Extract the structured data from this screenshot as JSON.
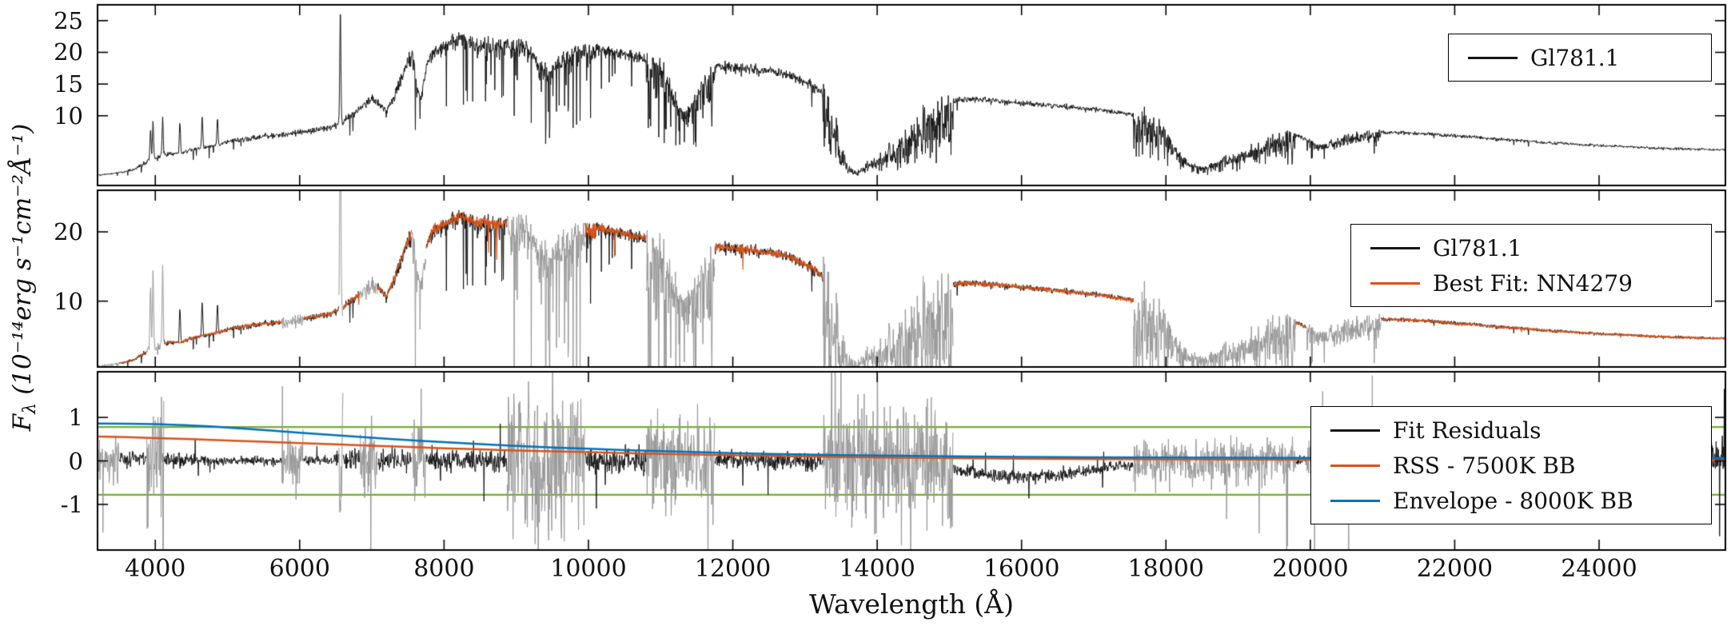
{
  "chart_data": {
    "type": "line",
    "title": "",
    "xlabel": "Wavelength (Å)",
    "ylabel": {
      "symbol": "F",
      "subscript": "λ",
      "units": " (10⁻¹⁴erg s⁻¹cm⁻²Å⁻¹)"
    },
    "ylabel_plain": "F_λ (10⁻¹⁴ erg s⁻¹ cm⁻² Å⁻¹)",
    "xlim": [
      3200,
      25750
    ],
    "x_ticks": [
      4000,
      6000,
      8000,
      10000,
      12000,
      14000,
      16000,
      18000,
      20000,
      22000,
      24000
    ],
    "colors": {
      "data": "#161616",
      "fit": "#d95319",
      "masked": "#989898",
      "rss": "#d95319",
      "envelope_bb": "#0072bd",
      "threshold": "#77ac30"
    },
    "panels": [
      {
        "id": "observed-spectrum",
        "ylim": [
          -1,
          27.5
        ],
        "y_ticks": [
          10,
          15,
          20,
          25
        ],
        "legend": [
          {
            "label": "Gl781.1",
            "color": "#161616"
          }
        ]
      },
      {
        "id": "best-fit-comparison",
        "ylim": [
          0.5,
          26
        ],
        "y_ticks": [
          10,
          20
        ],
        "legend": [
          {
            "label": "Gl781.1",
            "color": "#161616"
          },
          {
            "label": "Best Fit: NN4279",
            "color": "#d95319"
          }
        ]
      },
      {
        "id": "residuals",
        "ylim": [
          -2.05,
          2.05
        ],
        "y_ticks": [
          -1,
          0,
          1
        ],
        "threshold": 0.78,
        "legend": [
          {
            "label": "Fit Residuals",
            "color": "#161616"
          },
          {
            "label": "RSS - 7500K BB",
            "color": "#d95319"
          },
          {
            "label": "Envelope - 8000K BB",
            "color": "#0072bd"
          }
        ]
      }
    ],
    "spectrum_envelope": [
      [
        3200,
        0.7
      ],
      [
        3400,
        0.9
      ],
      [
        3600,
        1.3
      ],
      [
        3700,
        1.6
      ],
      [
        3800,
        2.3
      ],
      [
        3900,
        2.9
      ],
      [
        4000,
        3.4
      ],
      [
        4100,
        3.9
      ],
      [
        4200,
        4.2
      ],
      [
        4350,
        4.1
      ],
      [
        4500,
        4.8
      ],
      [
        4700,
        5.2
      ],
      [
        4900,
        5.7
      ],
      [
        5100,
        6.3
      ],
      [
        5300,
        6.6
      ],
      [
        5500,
        6.9
      ],
      [
        5700,
        7.1
      ],
      [
        5900,
        7.4
      ],
      [
        6100,
        7.8
      ],
      [
        6300,
        8.1
      ],
      [
        6450,
        8.5
      ],
      [
        6600,
        9.3
      ],
      [
        6750,
        10.6
      ],
      [
        6900,
        12.2
      ],
      [
        7000,
        13.2
      ],
      [
        7100,
        12.1
      ],
      [
        7200,
        10.9
      ],
      [
        7300,
        13.4
      ],
      [
        7400,
        16.3
      ],
      [
        7500,
        19.3
      ],
      [
        7560,
        20.6
      ],
      [
        7620,
        14.8
      ],
      [
        7680,
        13.2
      ],
      [
        7750,
        18.2
      ],
      [
        7850,
        20.9
      ],
      [
        7950,
        21.3
      ],
      [
        8050,
        21.9
      ],
      [
        8150,
        22.5
      ],
      [
        8250,
        22.9
      ],
      [
        8350,
        22.4
      ],
      [
        8450,
        21.9
      ],
      [
        8550,
        22.1
      ],
      [
        8650,
        21.6
      ],
      [
        8750,
        21.9
      ],
      [
        8850,
        22.0
      ],
      [
        8950,
        21.6
      ],
      [
        9050,
        21.7
      ],
      [
        9150,
        21.1
      ],
      [
        9250,
        20.2
      ],
      [
        9350,
        18.4
      ],
      [
        9450,
        17.6
      ],
      [
        9550,
        18.8
      ],
      [
        9700,
        20.4
      ],
      [
        9850,
        20.9
      ],
      [
        10000,
        21.1
      ],
      [
        10150,
        20.9
      ],
      [
        10300,
        20.6
      ],
      [
        10500,
        20.1
      ],
      [
        10700,
        19.7
      ],
      [
        10900,
        19.2
      ],
      [
        11050,
        17.8
      ],
      [
        11150,
        15.2
      ],
      [
        11250,
        11.8
      ],
      [
        11350,
        10.8
      ],
      [
        11450,
        12.6
      ],
      [
        11550,
        15.4
      ],
      [
        11650,
        17.2
      ],
      [
        11800,
        18.2
      ],
      [
        11950,
        18.1
      ],
      [
        12100,
        17.9
      ],
      [
        12300,
        17.7
      ],
      [
        12500,
        17.4
      ],
      [
        12700,
        17.0
      ],
      [
        12900,
        16.2
      ],
      [
        13100,
        15.2
      ],
      [
        13250,
        13.6
      ],
      [
        13400,
        9.5
      ],
      [
        13500,
        4.8
      ],
      [
        13600,
        2.0
      ],
      [
        13700,
        1.2
      ],
      [
        13800,
        1.6
      ],
      [
        13900,
        2.6
      ],
      [
        14000,
        3.4
      ],
      [
        14150,
        4.4
      ],
      [
        14300,
        5.6
      ],
      [
        14450,
        7.4
      ],
      [
        14600,
        9.2
      ],
      [
        14750,
        10.8
      ],
      [
        14900,
        12.0
      ],
      [
        15050,
        12.6
      ],
      [
        15250,
        12.8
      ],
      [
        15450,
        12.7
      ],
      [
        15700,
        12.5
      ],
      [
        16000,
        12.2
      ],
      [
        16300,
        11.9
      ],
      [
        16600,
        11.6
      ],
      [
        16900,
        11.3
      ],
      [
        17200,
        10.9
      ],
      [
        17500,
        10.4
      ],
      [
        17700,
        9.8
      ],
      [
        17900,
        8.6
      ],
      [
        18050,
        6.6
      ],
      [
        18200,
        4.2
      ],
      [
        18350,
        2.4
      ],
      [
        18500,
        1.9
      ],
      [
        18650,
        2.5
      ],
      [
        18800,
        3.2
      ],
      [
        18950,
        3.9
      ],
      [
        19100,
        4.4
      ],
      [
        19250,
        4.9
      ],
      [
        19400,
        5.6
      ],
      [
        19550,
        6.6
      ],
      [
        19700,
        7.2
      ],
      [
        19850,
        6.9
      ],
      [
        19950,
        6.3
      ],
      [
        20050,
        5.6
      ],
      [
        20150,
        5.3
      ],
      [
        20250,
        5.7
      ],
      [
        20400,
        6.4
      ],
      [
        20550,
        6.9
      ],
      [
        20700,
        7.2
      ],
      [
        20900,
        7.4
      ],
      [
        21100,
        7.5
      ],
      [
        21400,
        7.4
      ],
      [
        21700,
        7.2
      ],
      [
        22000,
        6.9
      ],
      [
        22300,
        6.7
      ],
      [
        22600,
        6.4
      ],
      [
        22900,
        6.2
      ],
      [
        23200,
        5.9
      ],
      [
        23500,
        5.7
      ],
      [
        23800,
        5.5
      ],
      [
        24100,
        5.3
      ],
      [
        24400,
        5.2
      ],
      [
        24700,
        5.0
      ],
      [
        25000,
        4.9
      ],
      [
        25300,
        4.8
      ],
      [
        25750,
        4.7
      ]
    ],
    "emission_lines": [
      [
        3934,
        5
      ],
      [
        3968,
        6
      ],
      [
        4102,
        6
      ],
      [
        4341,
        5
      ],
      [
        4650,
        5
      ],
      [
        4861,
        4
      ],
      [
        6563,
        18
      ]
    ],
    "rough_regions": [
      [
        3200,
        4200,
        0.14,
        0.12,
        0.02,
        0.5
      ],
      [
        4200,
        6500,
        0.07,
        0.05,
        0.01,
        0.3
      ],
      [
        6500,
        7500,
        0.09,
        0.05,
        0.02,
        0.35
      ],
      [
        7500,
        8500,
        0.11,
        0.035,
        0.05,
        0.4
      ],
      [
        8500,
        9300,
        0.13,
        0.035,
        0.06,
        0.45
      ],
      [
        9300,
        10100,
        0.2,
        0.035,
        0.07,
        0.5
      ],
      [
        10100,
        10800,
        0.07,
        0.03,
        0.02,
        0.25
      ],
      [
        10800,
        11750,
        0.35,
        0.05,
        0.1,
        0.5
      ],
      [
        11750,
        13250,
        0.07,
        0.035,
        0.02,
        0.3
      ],
      [
        13250,
        15050,
        0.55,
        0.3,
        0.15,
        0.5
      ],
      [
        15050,
        17550,
        0.045,
        0.03,
        0.004,
        0.2
      ],
      [
        17550,
        19800,
        0.45,
        0.18,
        0.1,
        0.5
      ],
      [
        19800,
        19950,
        0.08,
        0.05,
        0.01,
        0.2
      ],
      [
        19950,
        20980,
        0.2,
        0.1,
        0.05,
        0.35
      ],
      [
        20980,
        25750,
        0.045,
        0.035,
        0.004,
        0.15
      ]
    ],
    "masked_regions": [
      {
        "range": [
          3200,
          3500
        ],
        "residual_amp": 0.7
      },
      {
        "range": [
          3880,
          4120
        ],
        "residual_amp": 1.6
      },
      {
        "range": [
          5750,
          6050
        ],
        "residual_amp": 0.6
      },
      {
        "range": [
          6540,
          6600
        ],
        "residual_amp": 1.8
      },
      {
        "range": [
          6830,
          7080
        ],
        "residual_amp": 0.9
      },
      {
        "range": [
          7550,
          7750
        ],
        "residual_amp": 0.9
      },
      {
        "range": [
          8870,
          9950
        ],
        "residual_amp": 1.8
      },
      {
        "range": [
          10800,
          11750
        ],
        "residual_amp": 1.1
      },
      {
        "range": [
          13250,
          15050
        ],
        "residual_amp": 1.5
      },
      {
        "range": [
          17550,
          19800
        ],
        "residual_amp": 0.55
      },
      {
        "range": [
          19950,
          20980
        ],
        "residual_amp": 0.6
      }
    ],
    "fit_scale": 0.99,
    "residual_base_amplitude": 0.12,
    "residual_amplitude_regions": [
      [
        3200,
        4500,
        0.18
      ],
      [
        6500,
        8870,
        0.28
      ],
      [
        9950,
        10800,
        0.32
      ],
      [
        11750,
        13250,
        0.22
      ],
      [
        15050,
        16800,
        0.16
      ],
      [
        21000,
        25200,
        0.16
      ],
      [
        25200,
        25750,
        0.4
      ]
    ],
    "residual_systematic": [
      [
        3200,
        0.05
      ],
      [
        4500,
        0.02
      ],
      [
        6000,
        0.0
      ],
      [
        7500,
        0.03
      ],
      [
        9000,
        0.0
      ],
      [
        11000,
        0.02
      ],
      [
        13000,
        0.0
      ],
      [
        14500,
        -0.05
      ],
      [
        15300,
        -0.25
      ],
      [
        15900,
        -0.38
      ],
      [
        16500,
        -0.33
      ],
      [
        17200,
        -0.15
      ],
      [
        18000,
        -0.05
      ],
      [
        19500,
        0.0
      ],
      [
        20500,
        0.02
      ],
      [
        22000,
        0.0
      ],
      [
        24000,
        0.02
      ],
      [
        25750,
        0.1
      ]
    ],
    "bb_curves": {
      "rss": {
        "label": "RSS - 7500K BB",
        "color": "#d95319",
        "points": [
          [
            3200,
            0.56
          ],
          [
            3600,
            0.545
          ],
          [
            4000,
            0.525
          ],
          [
            4500,
            0.5
          ],
          [
            5000,
            0.47
          ],
          [
            5500,
            0.44
          ],
          [
            6000,
            0.41
          ],
          [
            6500,
            0.38
          ],
          [
            7000,
            0.35
          ],
          [
            7500,
            0.32
          ],
          [
            8000,
            0.29
          ],
          [
            8500,
            0.265
          ],
          [
            9000,
            0.24
          ],
          [
            9500,
            0.22
          ],
          [
            10000,
            0.2
          ],
          [
            10500,
            0.18
          ],
          [
            11000,
            0.16
          ],
          [
            11500,
            0.145
          ],
          [
            12000,
            0.13
          ],
          [
            12500,
            0.115
          ],
          [
            13000,
            0.1
          ],
          [
            13500,
            0.09
          ],
          [
            14000,
            0.08
          ],
          [
            15000,
            0.063
          ],
          [
            16000,
            0.05
          ],
          [
            17000,
            0.042
          ],
          [
            18000,
            0.036
          ],
          [
            19000,
            0.031
          ],
          [
            20000,
            0.027
          ],
          [
            21000,
            0.024
          ],
          [
            22000,
            0.022
          ],
          [
            23000,
            0.02
          ],
          [
            24000,
            0.018
          ],
          [
            25750,
            0.016
          ]
        ]
      },
      "envelope": {
        "label": "Envelope - 8000K BB",
        "color": "#0072bd",
        "points": [
          [
            3200,
            0.86
          ],
          [
            3600,
            0.855
          ],
          [
            4000,
            0.845
          ],
          [
            4400,
            0.825
          ],
          [
            4800,
            0.79
          ],
          [
            5200,
            0.745
          ],
          [
            5600,
            0.7
          ],
          [
            6000,
            0.65
          ],
          [
            6400,
            0.6
          ],
          [
            6800,
            0.555
          ],
          [
            7200,
            0.51
          ],
          [
            7600,
            0.47
          ],
          [
            8000,
            0.43
          ],
          [
            8500,
            0.385
          ],
          [
            9000,
            0.345
          ],
          [
            9500,
            0.31
          ],
          [
            10000,
            0.28
          ],
          [
            10500,
            0.25
          ],
          [
            11000,
            0.225
          ],
          [
            11500,
            0.2
          ],
          [
            12000,
            0.18
          ],
          [
            12500,
            0.163
          ],
          [
            13000,
            0.148
          ],
          [
            13500,
            0.135
          ],
          [
            14000,
            0.123
          ],
          [
            15000,
            0.105
          ],
          [
            16000,
            0.092
          ],
          [
            17000,
            0.083
          ],
          [
            18000,
            0.077
          ],
          [
            19000,
            0.073
          ],
          [
            20000,
            0.07
          ],
          [
            21000,
            0.068
          ],
          [
            22000,
            0.066
          ],
          [
            23000,
            0.065
          ],
          [
            24000,
            0.064
          ],
          [
            25750,
            0.063
          ]
        ]
      }
    }
  }
}
